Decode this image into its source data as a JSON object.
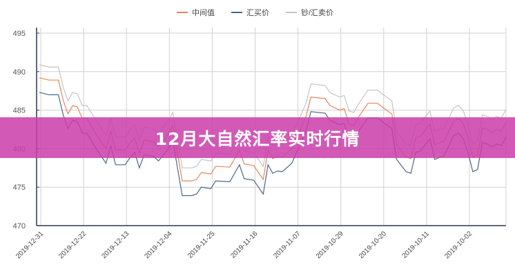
{
  "banner": {
    "title": "12月大自然汇率实时行情"
  },
  "chart_data": {
    "type": "line",
    "title": "",
    "xlabel": "",
    "ylabel": "",
    "ylim": [
      470,
      495
    ],
    "yticks": [
      "495",
      "490",
      "485",
      "480",
      "475",
      "470"
    ],
    "xticks": [
      "2019-12-31",
      "2019-12-22",
      "2019-12-13",
      "2019-12-04",
      "2019-11-25",
      "2019-11-16",
      "2019-11-07",
      "2019-10-29",
      "2019-10-20",
      "2019-10-11",
      "2019-10-02"
    ],
    "x_order": "descending",
    "grid": true,
    "legend": "top",
    "x": [
      "2019-12-31",
      "2019-12-29",
      "2019-12-27",
      "2019-12-26",
      "2019-12-25",
      "2019-12-24",
      "2019-12-23",
      "2019-12-22",
      "2019-12-21",
      "2019-12-19",
      "2019-12-17",
      "2019-12-16",
      "2019-12-15",
      "2019-12-13",
      "2019-12-12",
      "2019-12-11",
      "2019-12-10",
      "2019-12-09",
      "2019-12-07",
      "2019-12-06",
      "2019-12-04",
      "2019-12-03",
      "2019-12-01",
      "2019-11-29",
      "2019-11-28",
      "2019-11-27",
      "2019-11-25",
      "2019-11-24",
      "2019-11-21",
      "2019-11-19",
      "2019-11-18",
      "2019-11-16",
      "2019-11-14",
      "2019-11-13",
      "2019-11-12",
      "2019-11-11",
      "2019-11-10",
      "2019-11-08",
      "2019-11-05",
      "2019-11-04",
      "2019-11-01",
      "2019-10-31",
      "2019-10-29",
      "2019-10-28",
      "2019-10-27",
      "2019-10-26",
      "2019-10-25",
      "2019-10-23",
      "2019-10-21",
      "2019-10-20",
      "2019-10-18",
      "2019-10-17",
      "2019-10-15",
      "2019-10-14",
      "2019-10-13",
      "2019-10-12",
      "2019-10-10",
      "2019-10-09",
      "2019-10-07",
      "2019-10-05",
      "2019-10-04",
      "2019-10-03",
      "2019-10-02",
      "2019-10-01",
      "2019-09-30",
      "2019-09-29",
      "2019-09-28",
      "2019-09-27",
      "2019-09-26",
      "2019-09-25",
      "2019-09-24"
    ],
    "series": [
      {
        "name": "中间值",
        "color": "#e8845a",
        "values": [
          489.2,
          488.9,
          488.9,
          486.3,
          484.5,
          485.6,
          485.4,
          483.9,
          483.9,
          481.8,
          480.0,
          482.3,
          479.8,
          479.8,
          480.7,
          481.4,
          479.4,
          481.1,
          480.9,
          480.3,
          481.8,
          483.0,
          475.8,
          475.8,
          476.0,
          476.9,
          476.7,
          477.7,
          477.6,
          479.8,
          478.0,
          477.8,
          476.0,
          479.8,
          478.7,
          479.0,
          478.9,
          480.0,
          484.2,
          486.7,
          486.5,
          485.6,
          485.0,
          485.2,
          483.2,
          483.0,
          484.1,
          485.9,
          485.9,
          485.4,
          484.5,
          480.5,
          478.9,
          478.7,
          481.4,
          481.6,
          483.2,
          480.5,
          481.0,
          483.6,
          483.9,
          483.2,
          481.4,
          478.9,
          479.2,
          482.7,
          482.5,
          482.1,
          482.5,
          482.3,
          483.4
        ]
      },
      {
        "name": "汇买价",
        "color": "#4b6688",
        "values": [
          487.3,
          487.0,
          487.0,
          484.4,
          482.6,
          483.7,
          483.5,
          482.0,
          482.0,
          479.9,
          478.1,
          480.4,
          477.9,
          477.9,
          478.8,
          479.5,
          477.5,
          479.2,
          479.0,
          478.4,
          479.9,
          481.1,
          473.9,
          473.9,
          474.1,
          475.0,
          474.8,
          475.8,
          475.7,
          477.9,
          476.1,
          475.9,
          474.1,
          477.9,
          476.8,
          477.1,
          477.0,
          478.1,
          482.3,
          484.8,
          484.6,
          483.7,
          483.1,
          483.3,
          481.3,
          481.1,
          482.2,
          484.0,
          484.0,
          483.5,
          482.6,
          478.6,
          477.0,
          476.8,
          479.5,
          479.7,
          481.3,
          478.6,
          479.1,
          481.7,
          482.0,
          481.3,
          479.5,
          477.0,
          477.3,
          480.8,
          480.6,
          480.2,
          480.6,
          480.4,
          481.5
        ]
      },
      {
        "name": "钞/汇卖价",
        "color": "#c4c4c4",
        "values": [
          490.9,
          490.6,
          490.6,
          488.0,
          486.2,
          487.3,
          487.1,
          485.6,
          485.6,
          483.5,
          481.7,
          484.0,
          481.5,
          481.5,
          482.4,
          483.1,
          481.1,
          482.8,
          482.6,
          482.0,
          483.5,
          484.7,
          477.5,
          477.5,
          477.7,
          478.6,
          478.4,
          479.4,
          479.3,
          481.5,
          479.7,
          479.5,
          477.7,
          481.5,
          480.4,
          480.7,
          480.6,
          481.7,
          485.9,
          488.4,
          488.2,
          487.3,
          486.7,
          486.9,
          484.9,
          484.7,
          485.8,
          487.6,
          487.6,
          487.1,
          486.2,
          482.2,
          480.6,
          480.4,
          483.1,
          483.3,
          484.9,
          482.2,
          482.7,
          485.3,
          485.6,
          484.9,
          483.1,
          480.6,
          480.9,
          484.4,
          484.2,
          483.8,
          484.2,
          484.0,
          485.1
        ]
      }
    ]
  }
}
